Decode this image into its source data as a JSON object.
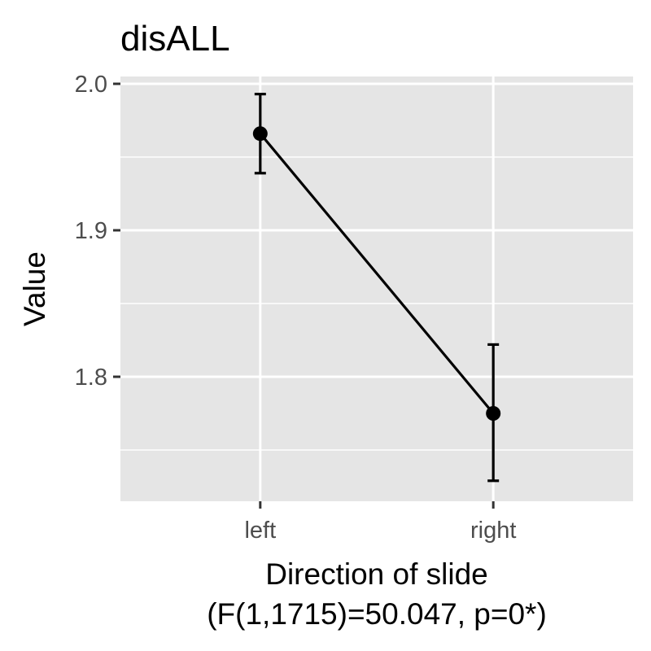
{
  "chart_data": {
    "type": "line",
    "title": "disALL",
    "xlabel": "Direction of slide",
    "xlabel_sub": "(F(1,1715)=50.047, p=0*)",
    "ylabel": "Value",
    "categories": [
      "left",
      "right"
    ],
    "series": [
      {
        "values": [
          1.966,
          1.775
        ],
        "error_low": [
          1.939,
          1.729
        ],
        "error_high": [
          1.993,
          1.822
        ]
      }
    ],
    "ylim": [
      1.715,
      2.005
    ],
    "yticks": [
      1.8,
      1.9,
      2.0
    ],
    "yticklabels": [
      "1.8",
      "1.9",
      "2.0"
    ],
    "grid": true,
    "legend": "none",
    "colors": {
      "panel": "#e5e5e5",
      "grid": "#ffffff",
      "line": "#000000",
      "tick": "#333333"
    }
  }
}
